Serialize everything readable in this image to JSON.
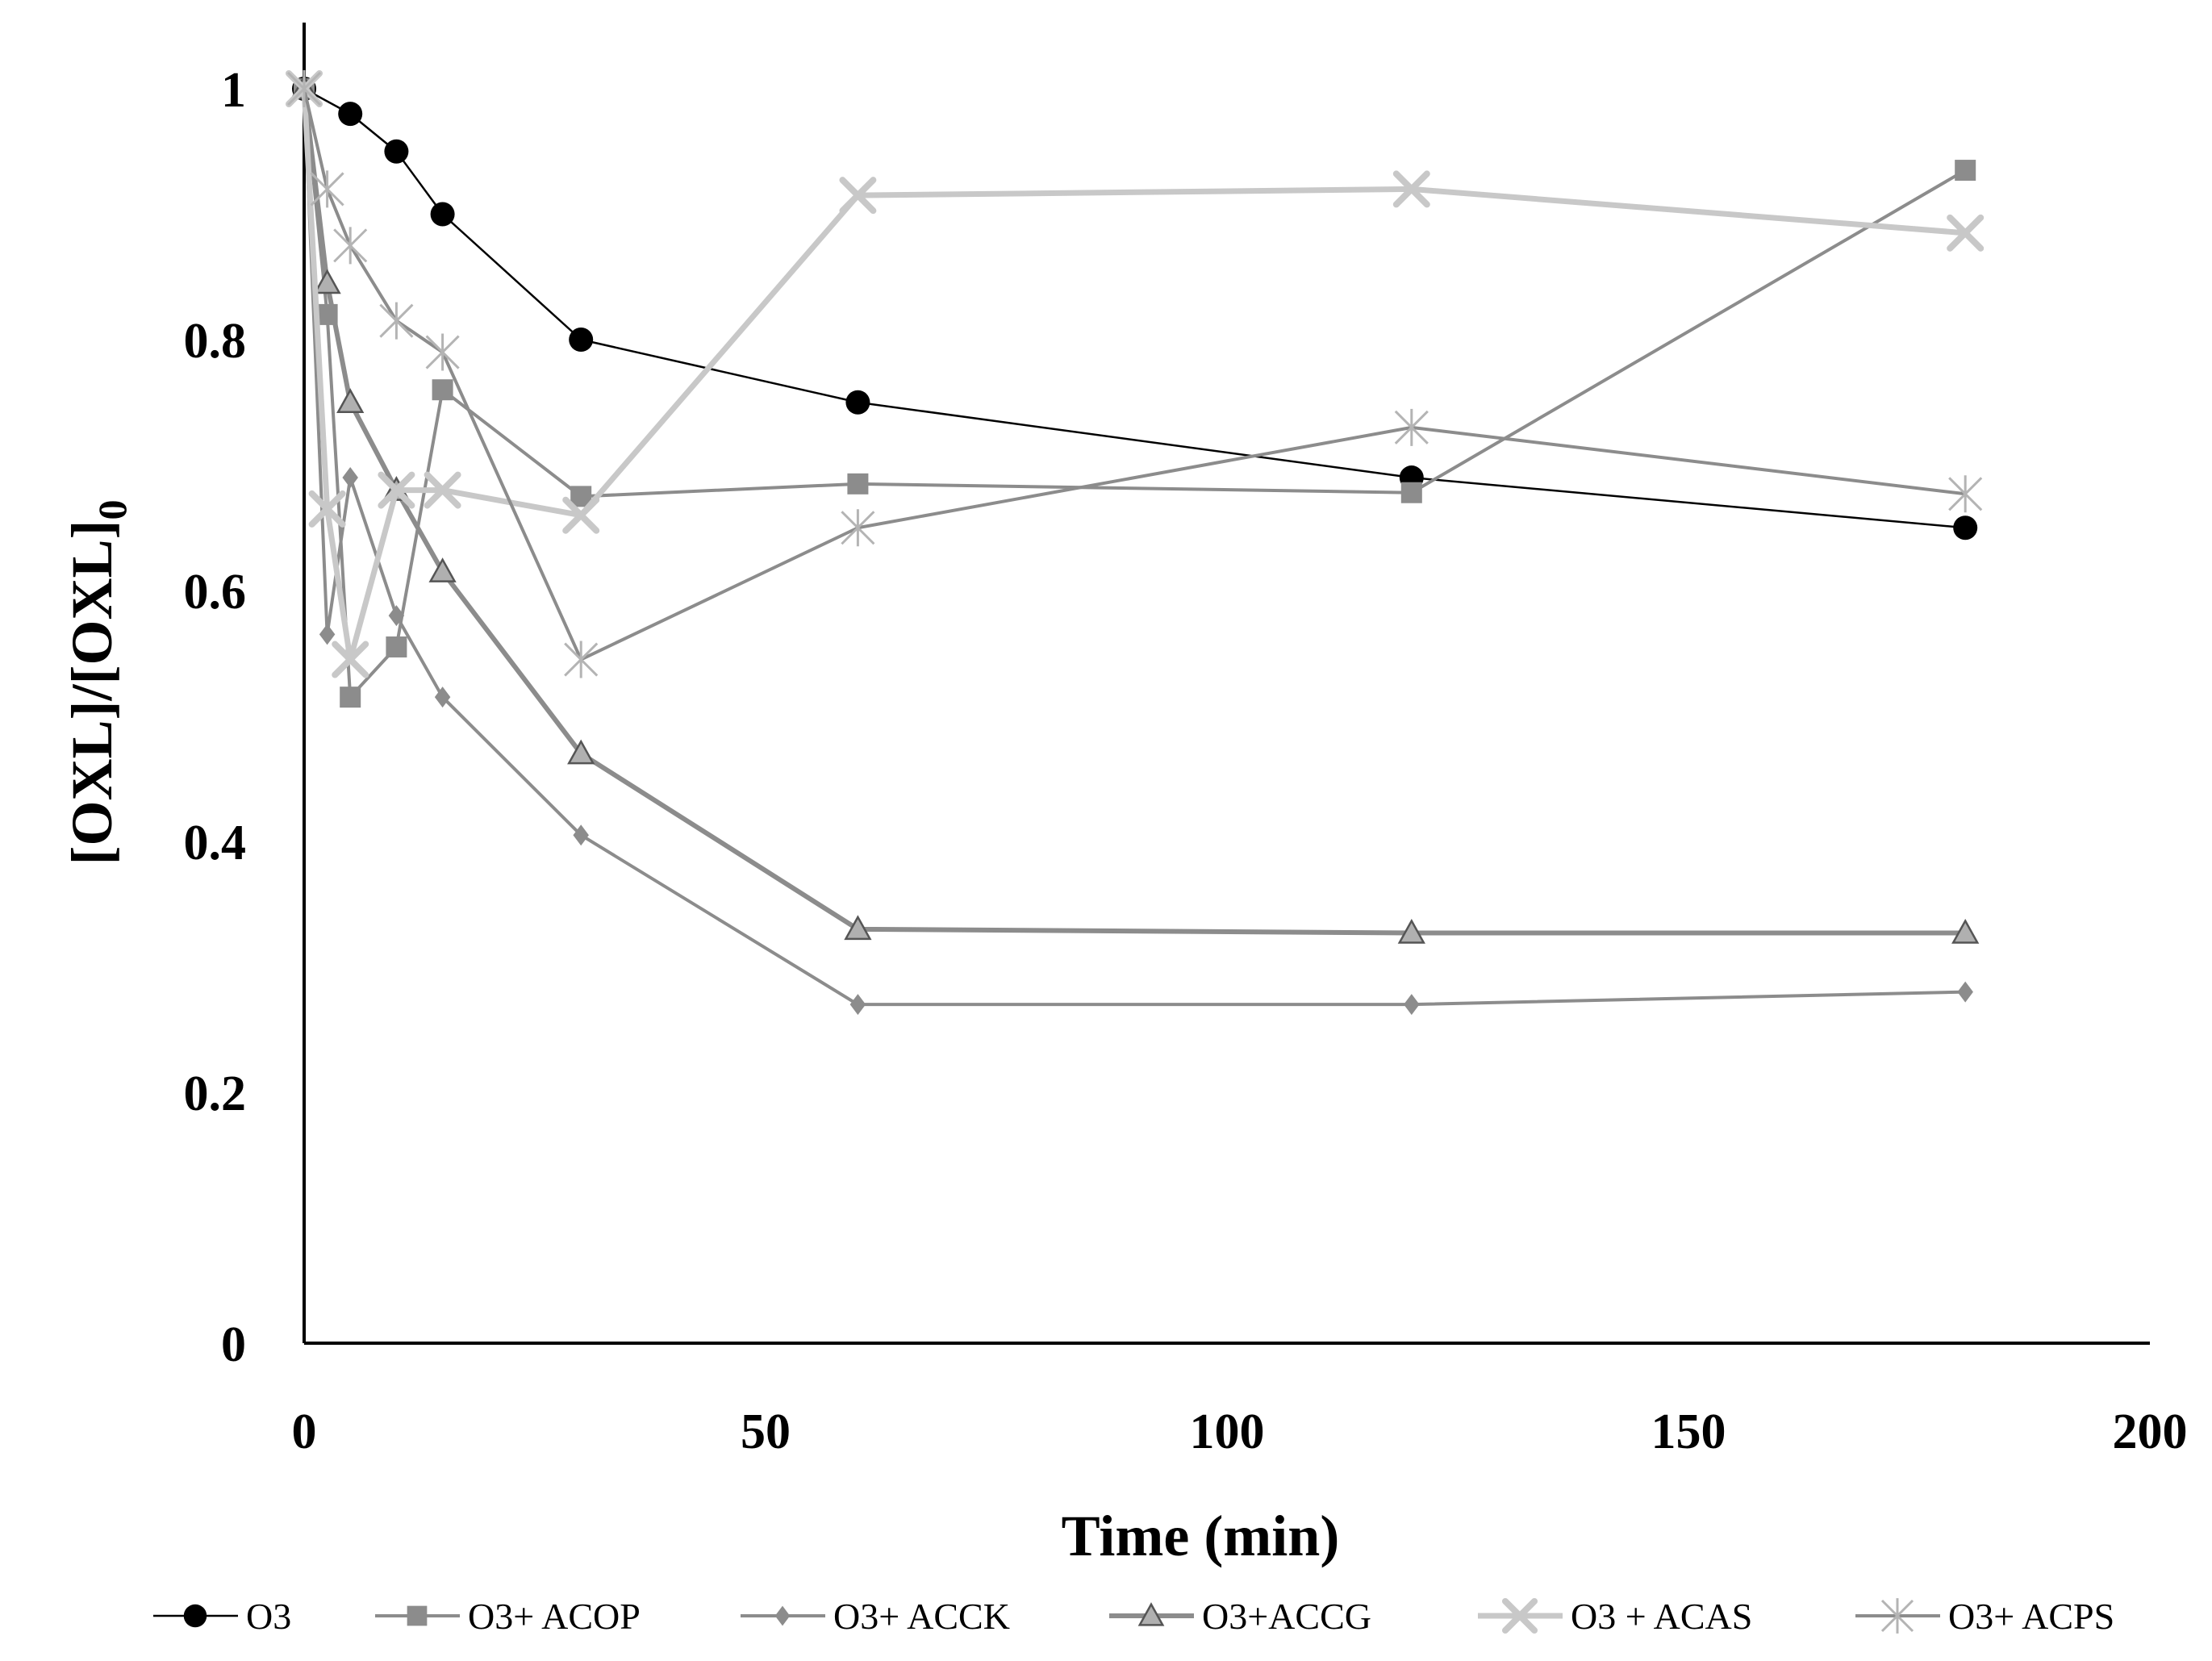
{
  "chart_data": {
    "type": "line",
    "title": "",
    "xlabel": "Time (min)",
    "ylabel_main": "[OXL]/[OXL]",
    "ylabel_sub": "0",
    "xlim": [
      0,
      200
    ],
    "ylim": [
      0,
      1
    ],
    "xticks": [
      "0",
      "50",
      "100",
      "150",
      "200"
    ],
    "yticks": [
      "0",
      "0.2",
      "0.4",
      "0.6",
      "0.8",
      "1"
    ],
    "grid": false,
    "legend_position": "bottom",
    "series": [
      {
        "name": "O3",
        "marker": "circle",
        "color": "#000000",
        "x": [
          0,
          5,
          10,
          15,
          30,
          60,
          120,
          180
        ],
        "y": [
          1.0,
          0.98,
          0.95,
          0.9,
          0.8,
          0.75,
          0.69,
          0.65
        ]
      },
      {
        "name": "O3+ ACOP",
        "marker": "square",
        "color": "#8c8c8c",
        "x": [
          0,
          2.5,
          5,
          10,
          15,
          30,
          60,
          120,
          180
        ],
        "y": [
          1.0,
          0.82,
          0.515,
          0.555,
          0.76,
          0.675,
          0.685,
          0.678,
          0.935
        ]
      },
      {
        "name": "O3+ ACCK",
        "marker": "diamond",
        "color": "#8c8c8c",
        "x": [
          0,
          2.5,
          5,
          10,
          15,
          30,
          60,
          120,
          180
        ],
        "y": [
          1.0,
          0.565,
          0.69,
          0.58,
          0.515,
          0.405,
          0.27,
          0.27,
          0.28
        ]
      },
      {
        "name": "O3+ACCG",
        "marker": "triangle",
        "color": "#8c8c8c",
        "x": [
          0,
          2.5,
          5,
          10,
          15,
          30,
          60,
          120,
          180
        ],
        "y": [
          1.0,
          0.845,
          0.75,
          0.68,
          0.615,
          0.47,
          0.33,
          0.327,
          0.327
        ]
      },
      {
        "name": "O3 + ACAS",
        "marker": "x",
        "color": "#c8c8c8",
        "x": [
          0,
          2.5,
          5,
          10,
          15,
          30,
          60,
          120,
          180
        ],
        "y": [
          1.0,
          0.665,
          0.545,
          0.68,
          0.68,
          0.66,
          0.915,
          0.92,
          0.885
        ]
      },
      {
        "name": "O3+ ACPS",
        "marker": "star",
        "color": "#8c8c8c",
        "x": [
          0,
          2.5,
          5,
          10,
          15,
          30,
          60,
          120,
          180
        ],
        "y": [
          1.0,
          0.92,
          0.875,
          0.815,
          0.79,
          0.545,
          0.65,
          0.73,
          0.677
        ]
      }
    ]
  }
}
